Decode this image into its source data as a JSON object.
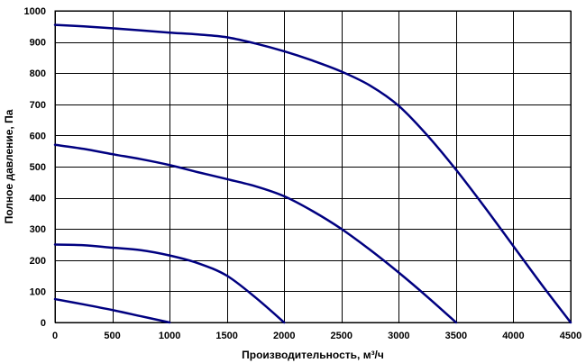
{
  "chart_data": {
    "type": "line",
    "title": "",
    "xlabel": "Производительность, м³/ч",
    "ylabel": "Полное давление, Па",
    "xlim": [
      0,
      4500
    ],
    "ylim": [
      0,
      1000
    ],
    "x_ticks": [
      0,
      500,
      1000,
      1500,
      2000,
      2500,
      3000,
      3500,
      4000,
      4500
    ],
    "y_ticks": [
      0,
      100,
      200,
      300,
      400,
      500,
      600,
      700,
      800,
      900,
      1000
    ],
    "grid": true,
    "line_color": "#000080",
    "series": [
      {
        "values": [
          [
            0,
            75
          ],
          [
            250,
            58
          ],
          [
            500,
            40
          ],
          [
            750,
            20
          ],
          [
            1000,
            0
          ]
        ]
      },
      {
        "values": [
          [
            0,
            250
          ],
          [
            250,
            248
          ],
          [
            500,
            240
          ],
          [
            750,
            232
          ],
          [
            1000,
            215
          ],
          [
            1250,
            190
          ],
          [
            1500,
            150
          ],
          [
            1750,
            80
          ],
          [
            2000,
            0
          ]
        ]
      },
      {
        "values": [
          [
            0,
            570
          ],
          [
            250,
            557
          ],
          [
            500,
            540
          ],
          [
            750,
            524
          ],
          [
            1000,
            505
          ],
          [
            1250,
            482
          ],
          [
            1500,
            460
          ],
          [
            1750,
            437
          ],
          [
            2000,
            405
          ],
          [
            2250,
            357
          ],
          [
            2500,
            300
          ],
          [
            2750,
            233
          ],
          [
            3000,
            160
          ],
          [
            3250,
            82
          ],
          [
            3500,
            0
          ]
        ]
      },
      {
        "values": [
          [
            0,
            955
          ],
          [
            250,
            950
          ],
          [
            500,
            944
          ],
          [
            750,
            937
          ],
          [
            1000,
            930
          ],
          [
            1250,
            924
          ],
          [
            1500,
            915
          ],
          [
            1750,
            895
          ],
          [
            2000,
            870
          ],
          [
            2250,
            840
          ],
          [
            2500,
            805
          ],
          [
            2750,
            760
          ],
          [
            3000,
            695
          ],
          [
            3250,
            600
          ],
          [
            3500,
            490
          ],
          [
            3750,
            370
          ],
          [
            4000,
            245
          ],
          [
            4250,
            120
          ],
          [
            4500,
            0
          ]
        ]
      }
    ]
  }
}
